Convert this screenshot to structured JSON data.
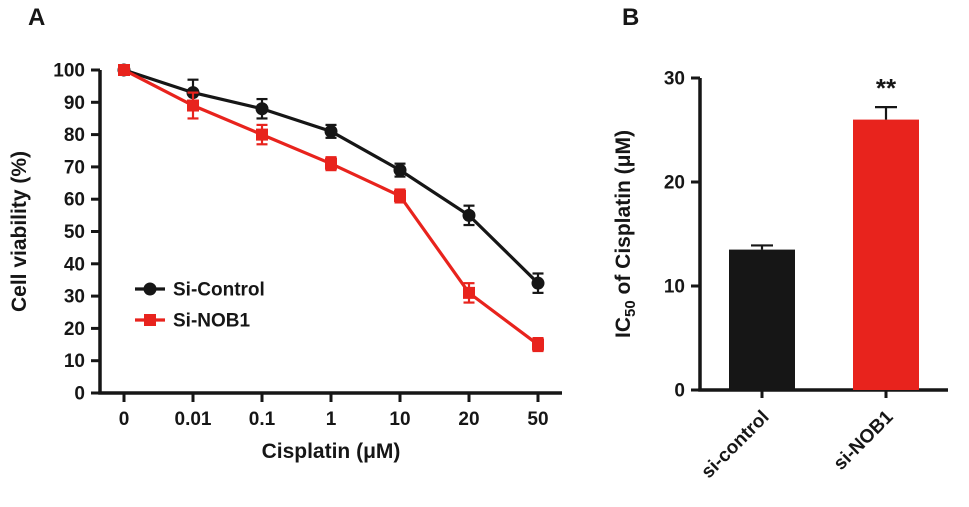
{
  "figure": {
    "background": "#ffffff",
    "panels": [
      {
        "label": "A"
      },
      {
        "label": "B"
      }
    ]
  },
  "colors": {
    "black": "#161616",
    "red": "#e8231d"
  },
  "chart_data": [
    {
      "type": "line",
      "panel": "A",
      "title": "",
      "xlabel": "Cisplatin (μM)",
      "ylabel": "Cell viability (%)",
      "categories": [
        "0",
        "0.01",
        "0.1",
        "1",
        "10",
        "20",
        "50"
      ],
      "ylim": [
        0,
        100
      ],
      "ytick_step": 10,
      "grid": false,
      "legend_position": "inside-lower-left",
      "series": [
        {
          "name": "Si-Control",
          "color": "#161616",
          "marker": "circle",
          "values": [
            100,
            93,
            88,
            81,
            69,
            55,
            34
          ],
          "errors": [
            1,
            4,
            3,
            2,
            2,
            3,
            3
          ]
        },
        {
          "name": "Si-NOB1",
          "color": "#e8231d",
          "marker": "square",
          "values": [
            100,
            89,
            80,
            71,
            61,
            31,
            15
          ],
          "errors": [
            1,
            4,
            3,
            2,
            2,
            3,
            2
          ]
        }
      ]
    },
    {
      "type": "bar",
      "panel": "B",
      "title": "",
      "xlabel": "",
      "ylabel": "IC50 of Cisplatin (μM)",
      "ylabel_parts": {
        "prefix": "IC",
        "sub": "50",
        "suffix": " of Cisplatin (μM)"
      },
      "categories": [
        "si-control",
        "si-NOB1"
      ],
      "values": [
        13.5,
        26
      ],
      "errors": [
        0.4,
        1.2
      ],
      "bar_colors": [
        "#161616",
        "#e8231d"
      ],
      "ylim": [
        0,
        30
      ],
      "ytick_step": 10,
      "grid": false,
      "annotations": [
        {
          "text": "**",
          "category_index": 1
        }
      ]
    }
  ]
}
